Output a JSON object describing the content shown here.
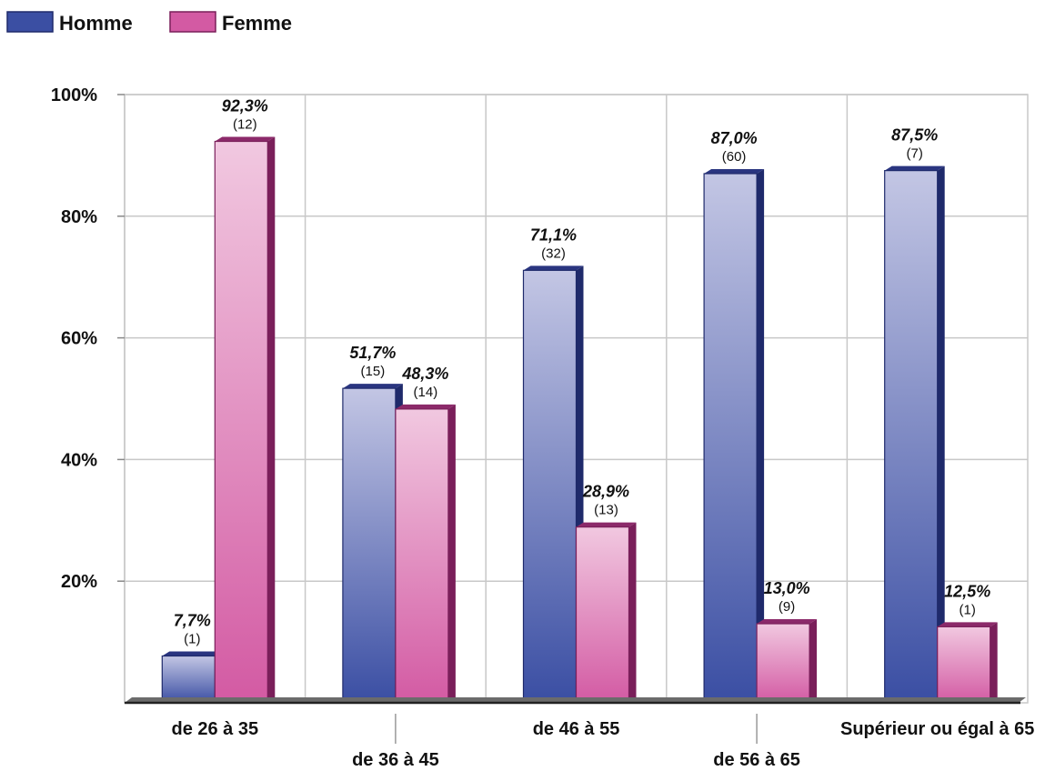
{
  "chart_data": {
    "type": "bar",
    "title": "",
    "xlabel": "",
    "ylabel": "",
    "ylim": [
      0,
      100
    ],
    "y_ticks": [
      "20%",
      "40%",
      "60%",
      "80%",
      "100%"
    ],
    "y_tick_values": [
      20,
      40,
      60,
      80,
      100
    ],
    "grid": true,
    "legend_position": "top-left",
    "categories": [
      "de 26 à 35",
      "de 36 à 45",
      "de 46 à 55",
      "de 56 à 65",
      "Supérieur ou égal à 65"
    ],
    "series": [
      {
        "name": "Homme",
        "color": "#3b4fa3",
        "values": [
          7.7,
          51.7,
          71.1,
          87.0,
          87.5
        ],
        "labels": [
          "7,7%",
          "51,7%",
          "71,1%",
          "87,0%",
          "87,5%"
        ],
        "counts": [
          "(1)",
          "(15)",
          "(32)",
          "(60)",
          "(7)"
        ]
      },
      {
        "name": "Femme",
        "color": "#d35aa3",
        "values": [
          92.3,
          48.3,
          28.9,
          13.0,
          12.5
        ],
        "labels": [
          "92,3%",
          "48,3%",
          "28,9%",
          "13,0%",
          "12,5%"
        ],
        "counts": [
          "(12)",
          "(14)",
          "(13)",
          "(9)",
          "(1)"
        ]
      }
    ]
  }
}
